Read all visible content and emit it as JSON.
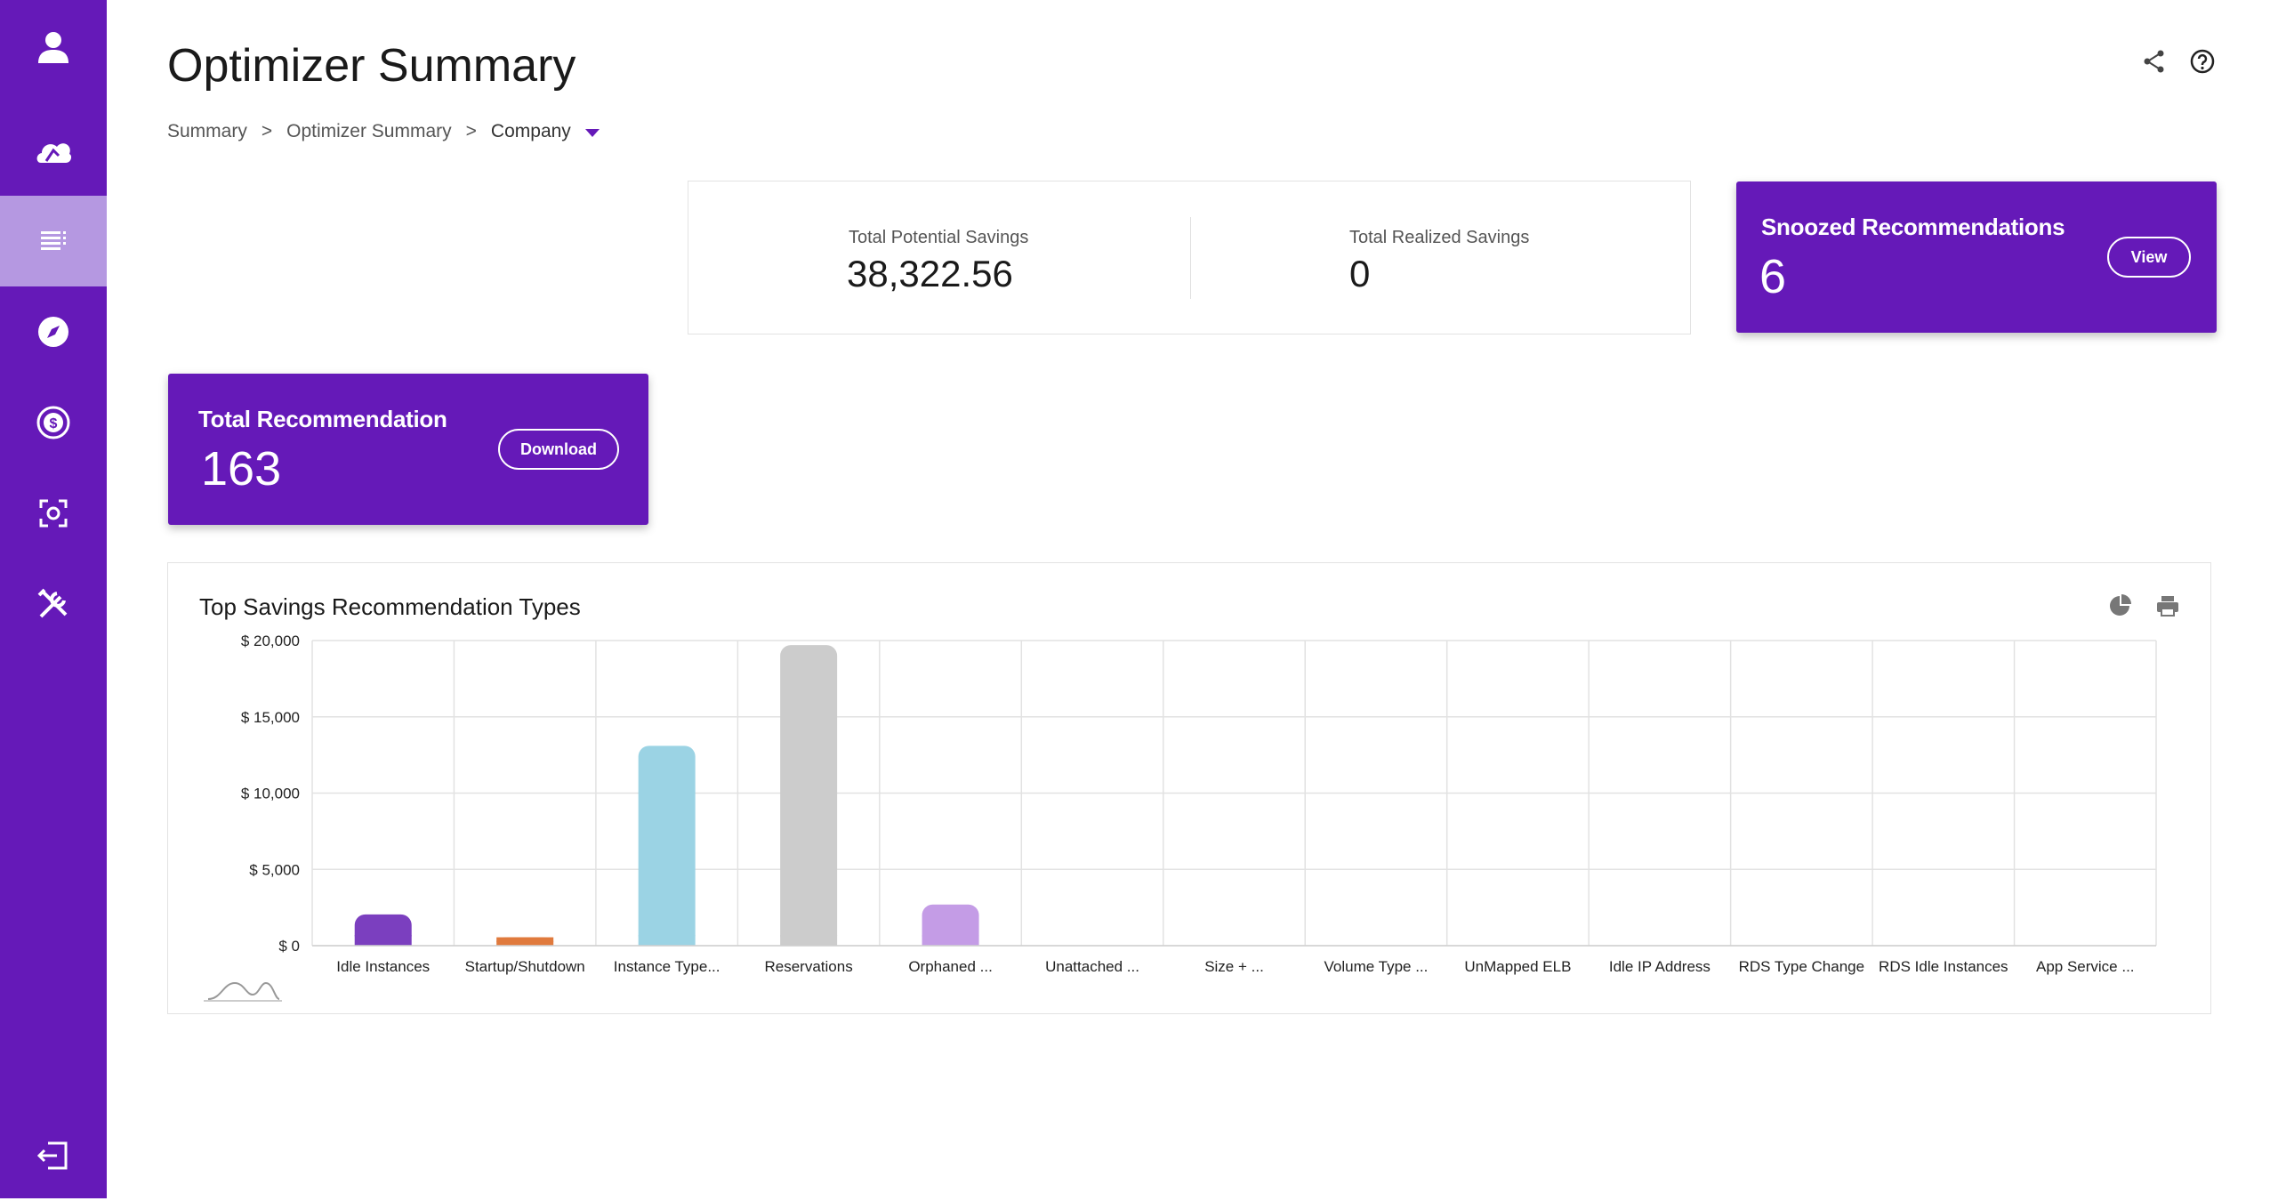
{
  "sidebar": {
    "items": [
      {
        "icon": "user-icon"
      },
      {
        "icon": "cloud-icon"
      },
      {
        "icon": "list-icon",
        "active": true
      },
      {
        "icon": "compass-icon"
      },
      {
        "icon": "cost-icon"
      },
      {
        "icon": "scan-icon"
      },
      {
        "icon": "tools-icon"
      }
    ],
    "logout_icon": "logout-icon"
  },
  "header": {
    "title": "Optimizer Summary",
    "share_icon": "share-icon",
    "help_icon": "help-icon"
  },
  "breadcrumb": {
    "items": [
      "Summary",
      "Optimizer Summary",
      "Company"
    ],
    "separator": ">"
  },
  "savings": {
    "potential_label": "Total Potential Savings",
    "potential_value": "38,322.56",
    "realized_label": "Total Realized Savings",
    "realized_value": "0"
  },
  "snoozed": {
    "title": "Snoozed Recommendations",
    "value": "6",
    "button": "View"
  },
  "total_recommendation": {
    "title": "Total Recommendation",
    "value": "163",
    "button": "Download"
  },
  "chart": {
    "title": "Top Savings Recommendation Types",
    "pie_icon": "pie-chart-icon",
    "print_icon": "print-icon"
  },
  "colors": {
    "primary": "#6519b8",
    "active_nav": "#b598e1"
  },
  "chart_data": {
    "type": "bar",
    "title": "Top Savings Recommendation Types",
    "xlabel": "",
    "ylabel": "",
    "ylim": [
      0,
      20000
    ],
    "yticks": [
      0,
      5000,
      10000,
      15000,
      20000
    ],
    "ytick_labels": [
      "$ 0",
      "$ 5,000",
      "$ 10,000",
      "$ 15,000",
      "$ 20,000"
    ],
    "grid": true,
    "categories": [
      "Idle Instances",
      "Startup/Shutdown",
      "Instance Type...",
      "Reservations",
      "Orphaned ...",
      "Unattached ...",
      "Size + ...",
      "Volume Type ...",
      "UnMapped ELB",
      "Idle IP Address",
      "RDS Type Change",
      "RDS Idle Instances",
      "App Service ..."
    ],
    "values": [
      2050,
      550,
      13100,
      19700,
      2700,
      0,
      0,
      0,
      0,
      0,
      0,
      0,
      0
    ],
    "colors": [
      "#7b3fbf",
      "#e07a3d",
      "#9bd3e4",
      "#cccccc",
      "#c49ce6",
      "#999999",
      "#999999",
      "#999999",
      "#999999",
      "#999999",
      "#999999",
      "#999999",
      "#999999"
    ]
  }
}
